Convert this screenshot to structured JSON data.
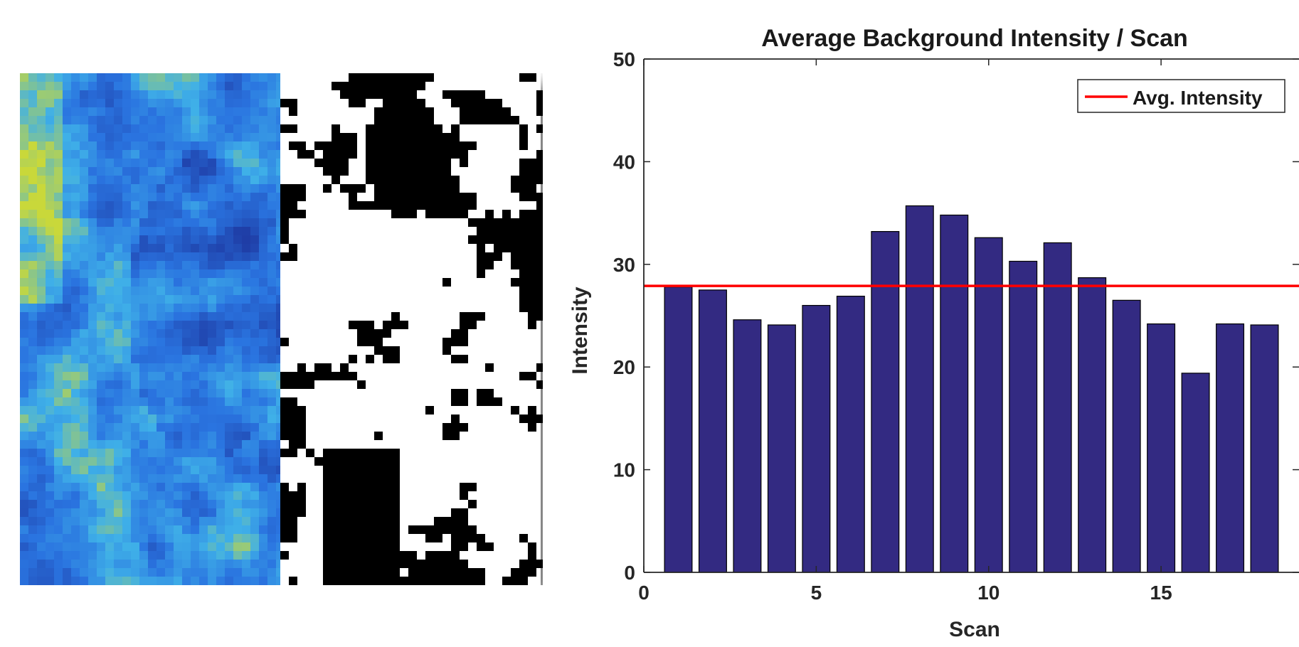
{
  "image_panel": {
    "left_view": "heatmap-scan",
    "right_view": "binary-threshold-mask",
    "colors": {
      "heatmap_dark": "#1f3fa8",
      "heatmap_mid": "#2a74e0",
      "heatmap_light": "#3fb0e8",
      "heatmap_hot": "#c9d83a",
      "mask_fg": "#000000",
      "mask_bg": "#ffffff"
    }
  },
  "chart_data": {
    "type": "bar",
    "title": "Average Background Intensity / Scan",
    "xlabel": "Scan",
    "ylabel": "Intensity",
    "x": [
      1,
      2,
      3,
      4,
      5,
      6,
      7,
      8,
      9,
      10,
      11,
      12,
      13,
      14,
      15,
      16,
      17,
      18
    ],
    "values": [
      27.8,
      27.5,
      24.6,
      24.1,
      26.0,
      26.9,
      33.2,
      35.7,
      34.8,
      32.6,
      30.3,
      32.1,
      28.7,
      26.5,
      24.2,
      19.4,
      24.2,
      24.1
    ],
    "xlim": [
      0,
      19
    ],
    "ylim": [
      0,
      50
    ],
    "xticks": [
      0,
      5,
      10,
      15
    ],
    "yticks": [
      0,
      10,
      20,
      30,
      40,
      50
    ],
    "reference_line": {
      "name": "Avg. Intensity",
      "value": 27.9,
      "color": "#ff0000"
    },
    "bar_color": "#332a82",
    "legend_position": "top-right",
    "grid": false
  }
}
